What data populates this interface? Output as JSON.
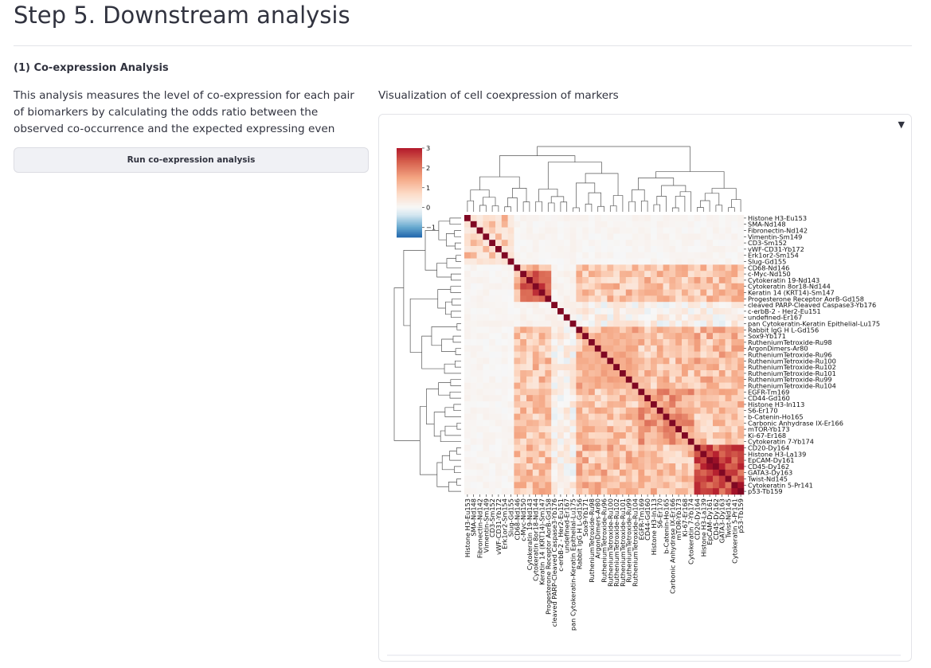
{
  "page": {
    "title": "Step 5. Downstream analysis",
    "section_heading": "(1) Co-expression Analysis",
    "description": "This analysis measures the level of co-expression for each pair of biomarkers by calculating the odds ratio between the observed co-occurrence and the expected expressing even",
    "run_button_label": "Run co-expression analysis",
    "viz_label": "Visualization of cell coexpression of markers",
    "toggle_icon": "▼"
  },
  "chart_data": {
    "type": "heatmap",
    "title": "",
    "colormap": "RdBu_r",
    "colorbar": {
      "ticks": [
        "3",
        "2",
        "1",
        "0",
        "−1"
      ],
      "tick_values": [
        3,
        2,
        1,
        0,
        -1
      ],
      "vmin": -1.5,
      "vmax": 3
    },
    "dendrograms": {
      "row": true,
      "col": true
    },
    "grid": false,
    "markers": [
      "Histone H3-Eu153",
      "SMA-Nd148",
      "Fibronectin-Nd142",
      "Vimentin-Sm149",
      "CD3-Sm152",
      "vWF-CD31-Yb172",
      "Erk1or2-Sm154",
      "Slug-Gd155",
      "CD68-Nd146",
      "c-Myc-Nd150",
      "Cytokeratin 19-Nd143",
      "Cytokeratin 8or18-Nd144",
      "Keratin 14 (KRT14)-Sm147",
      "Progesterone Receptor AorB-Gd158",
      "cleaved PARP-Cleaved Caspase3-Yb176",
      "c-erbB-2 - Her2-Eu151",
      "undefined-Er167",
      "pan Cytokeratin-Keratin Epithelial-Lu175",
      "Rabbit IgG H L-Gd156",
      "Sox9-Yb171",
      "RutheniumTetroxide-Ru98",
      "ArgonDimers-Ar80",
      "RutheniumTetroxide-Ru96",
      "RutheniumTetroxide-Ru100",
      "RutheniumTetroxide-Ru102",
      "RutheniumTetroxide-Ru101",
      "RutheniumTetroxide-Ru99",
      "RutheniumTetroxide-Ru104",
      "EGFR-Tm169",
      "CD44-Gd160",
      "Histone H3-In113",
      "S6-Er170",
      "b-Catenin-Ho165",
      "Carbonic Anhydrase IX-Er166",
      "mTOR-Yb173",
      "Ki-67-Er168",
      "Cytokeratin 7-Yb174",
      "CD20-Dy164",
      "Histone H3-La139",
      "EpCAM-Dy161",
      "CD45-Dy162",
      "GATA3-Dy163",
      "Twist-Nd145",
      "Cytokeratin 5-Pr141",
      "p53-Tb159"
    ]
  }
}
